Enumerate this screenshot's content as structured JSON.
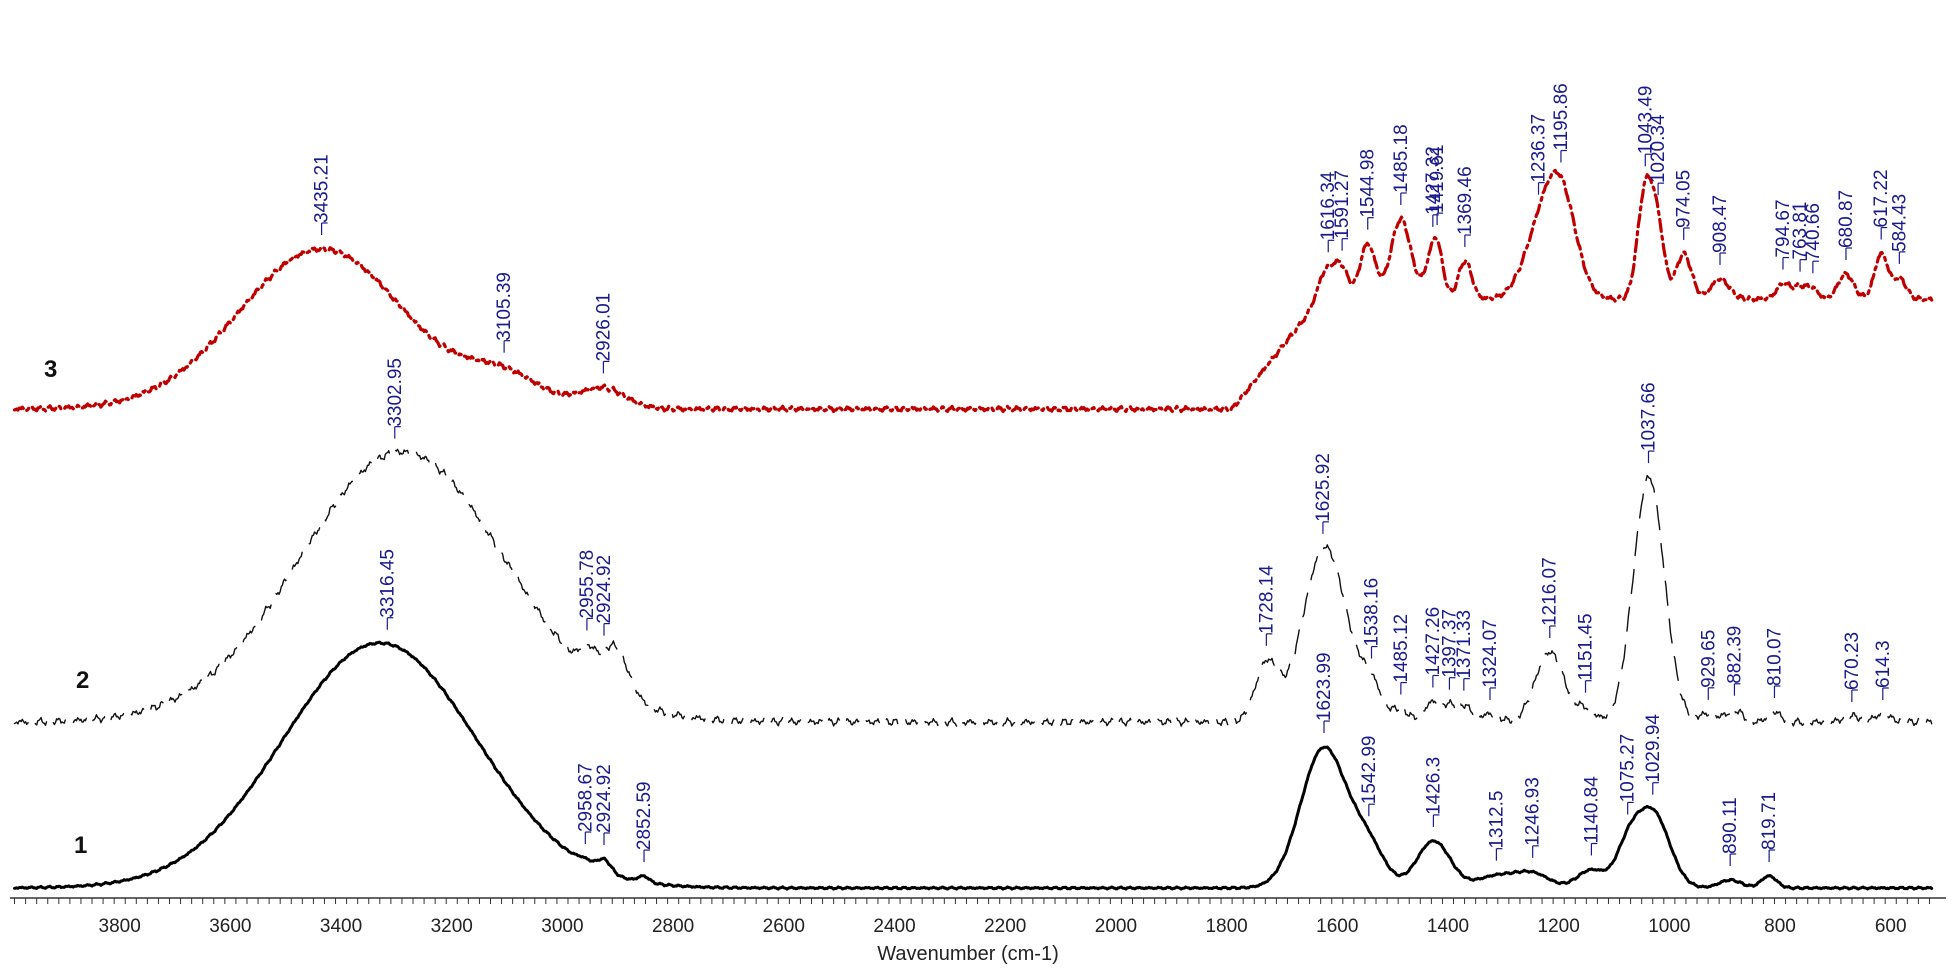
{
  "chart_data": {
    "type": "line",
    "title": "",
    "xlabel": "Wavenumber (cm-1)",
    "ylabel": "",
    "xlim": [
      4000,
      500
    ],
    "x_reversed": true,
    "grid": false,
    "ticks": [
      3800,
      3600,
      3400,
      3200,
      3000,
      2800,
      2600,
      2400,
      2200,
      2000,
      1800,
      1600,
      1400,
      1200,
      1000,
      800,
      600
    ],
    "tick_labels": [
      "3800",
      "3600",
      "3400",
      "3200",
      "3000",
      "2800",
      "2600",
      "2400",
      "2200",
      "2000",
      "1800",
      "1600",
      "1400",
      "1200",
      "1000",
      "800",
      "600"
    ],
    "series": [
      {
        "name": "1",
        "label": "1",
        "color": "#000000",
        "style": "solid",
        "peaks": [
          {
            "x": 3316.45,
            "label": "3316.45"
          },
          {
            "x": 2958.67,
            "label": "2958.67"
          },
          {
            "x": 2924.92,
            "label": "2924.92"
          },
          {
            "x": 2852.59,
            "label": "2852.59"
          },
          {
            "x": 1623.99,
            "label": "1623.99"
          },
          {
            "x": 1542.99,
            "label": "1542.99"
          },
          {
            "x": 1426.3,
            "label": "1426.3"
          },
          {
            "x": 1312.5,
            "label": "1312.5"
          },
          {
            "x": 1246.93,
            "label": "1246.93"
          },
          {
            "x": 1140.84,
            "label": "1140.84"
          },
          {
            "x": 1075.27,
            "label": "1075.27"
          },
          {
            "x": 1029.94,
            "label": "1029.94"
          },
          {
            "x": 890.11,
            "label": "890.11"
          },
          {
            "x": 819.71,
            "label": "819.71"
          }
        ]
      },
      {
        "name": "2",
        "label": "2",
        "color": "#111111",
        "style": "dashed",
        "peaks": [
          {
            "x": 3302.95,
            "label": "3302.95"
          },
          {
            "x": 2955.78,
            "label": "2955.78"
          },
          {
            "x": 2924.92,
            "label": "2924.92"
          },
          {
            "x": 1728.14,
            "label": "1728.14"
          },
          {
            "x": 1625.92,
            "label": "1625.92"
          },
          {
            "x": 1538.16,
            "label": "1538.16"
          },
          {
            "x": 1485.12,
            "label": "1485.12"
          },
          {
            "x": 1427.26,
            "label": "1427.26"
          },
          {
            "x": 1397.37,
            "label": "1397.37"
          },
          {
            "x": 1371.33,
            "label": "1371.33"
          },
          {
            "x": 1324.07,
            "label": "1324.07"
          },
          {
            "x": 1216.07,
            "label": "1216.07"
          },
          {
            "x": 1151.45,
            "label": "1151.45"
          },
          {
            "x": 1037.66,
            "label": "1037.66"
          },
          {
            "x": 929.65,
            "label": "929.65"
          },
          {
            "x": 882.39,
            "label": "882.39"
          },
          {
            "x": 810.07,
            "label": "810.07"
          },
          {
            "x": 670.23,
            "label": "670.23"
          },
          {
            "x": 614.3,
            "label": "614.3"
          }
        ]
      },
      {
        "name": "3",
        "label": "3",
        "color": "#c00000",
        "style": "dash-dot",
        "peaks": [
          {
            "x": 3435.21,
            "label": "3435.21"
          },
          {
            "x": 3105.39,
            "label": "3105.39"
          },
          {
            "x": 2926.01,
            "label": "2926.01"
          },
          {
            "x": 1616.34,
            "label": "1616.34"
          },
          {
            "x": 1591.27,
            "label": "1591.27"
          },
          {
            "x": 1544.98,
            "label": "1544.98"
          },
          {
            "x": 1485.18,
            "label": "1485.18"
          },
          {
            "x": 1427.32,
            "label": "1427.32"
          },
          {
            "x": 1419.61,
            "label": "1419.61"
          },
          {
            "x": 1369.46,
            "label": "1369.46"
          },
          {
            "x": 1236.37,
            "label": "1236.37"
          },
          {
            "x": 1195.86,
            "label": "1195.86"
          },
          {
            "x": 1043.49,
            "label": "1043.49"
          },
          {
            "x": 1020.34,
            "label": "1020.34"
          },
          {
            "x": 974.05,
            "label": "974.05"
          },
          {
            "x": 908.47,
            "label": "908.47"
          },
          {
            "x": 794.67,
            "label": "794.67"
          },
          {
            "x": 763.81,
            "label": "763.81"
          },
          {
            "x": 740.66,
            "label": "740.66"
          },
          {
            "x": 680.87,
            "label": "680.87"
          },
          {
            "x": 617.22,
            "label": "617.22"
          },
          {
            "x": 584.43,
            "label": "584.43"
          }
        ]
      }
    ]
  },
  "peak_label_color": "#1a1a8c"
}
